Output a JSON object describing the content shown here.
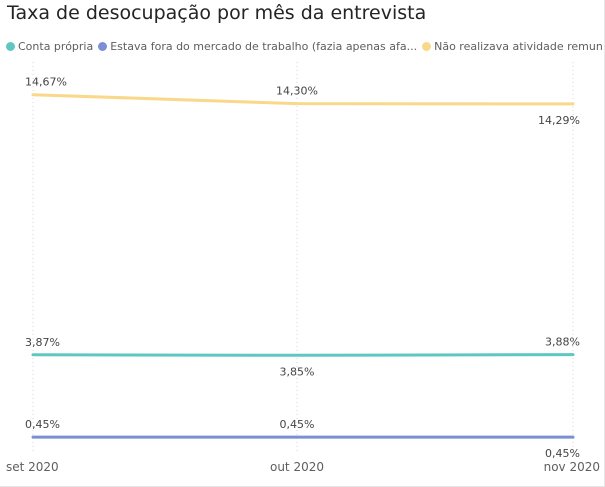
{
  "chart_data": {
    "type": "line",
    "title": "Taxa de desocupação por mês da entrevista",
    "categories": [
      "set 2020",
      "out 2020",
      "nov 2020"
    ],
    "series": [
      {
        "name": "Conta própria",
        "color": "#5fc7c2",
        "values": [
          3.87,
          3.85,
          3.88
        ],
        "labels": [
          "3,87%",
          "3,85%",
          "3,88%"
        ],
        "label_positions": [
          "above",
          "below",
          "above"
        ]
      },
      {
        "name": "Estava fora do mercado de trabalho (fazia apenas afa...",
        "color": "#7b8fd6",
        "values": [
          0.45,
          0.45,
          0.45
        ],
        "labels": [
          "0,45%",
          "0,45%",
          "0,45%"
        ],
        "label_positions": [
          "above",
          "above",
          "below"
        ]
      },
      {
        "name": "Não realizava atividade remuner...",
        "color": "#f9d88a",
        "values": [
          14.67,
          14.3,
          14.29
        ],
        "labels": [
          "14,67%",
          "14,30%",
          "14,29%"
        ],
        "label_positions": [
          "above",
          "above",
          "below"
        ]
      }
    ],
    "ylim": [
      0,
      15.5
    ],
    "grid": "vertical dotted",
    "legend": "top-left"
  }
}
